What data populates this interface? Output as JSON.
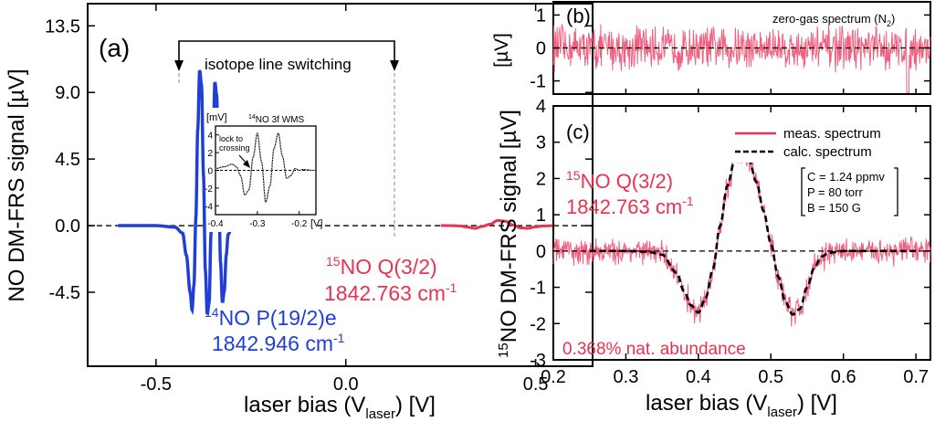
{
  "colors": {
    "blue": "#1f3fd6",
    "red": "#e8324f",
    "red_noise": "#f06080",
    "black": "#000000",
    "gray": "#9a9a9a"
  },
  "chart_data": [
    {
      "panel": "(a)",
      "type": "line",
      "xlabel_main": "laser bias (V",
      "xlabel_sub": "laser",
      "xlabel_tail": ") [V]",
      "ylabel": "NO DM-FRS signal [µV]",
      "xlim": [
        -0.68,
        0.65
      ],
      "ylim": [
        -9.5,
        15.0
      ],
      "xticks": [
        -0.5,
        0.0,
        0.5
      ],
      "xtick_labels": [
        "-0.5",
        "0.0",
        "0.5"
      ],
      "yticks": [
        -4.5,
        0.0,
        4.5,
        9.0,
        13.5
      ],
      "ytick_labels": [
        "-4.5",
        "0.0",
        "4.5",
        "9.0",
        "13.5"
      ],
      "annotation_switch": "isotope line switching",
      "label_14_sup": "14",
      "label_14_line": "NO P(19/2)e",
      "label_14_wave": "1842.946 cm",
      "label_14_exp": "-1",
      "label_15_sup": "15",
      "label_15_line": "NO Q(3/2)",
      "label_15_wave": "1842.763 cm",
      "label_15_exp": "-1",
      "series": [
        {
          "name": "14NO P(19/2)e",
          "x": [
            -0.6,
            -0.5,
            -0.45,
            -0.43,
            -0.42,
            -0.41,
            -0.405,
            -0.4,
            -0.395,
            -0.39,
            -0.385,
            -0.38,
            -0.375,
            -0.37,
            -0.365,
            -0.36,
            -0.355,
            -0.35,
            -0.345,
            -0.34,
            -0.335,
            -0.33,
            -0.325,
            -0.32,
            -0.315,
            -0.31,
            -0.3,
            -0.29,
            -0.28,
            -0.26,
            -0.24,
            -0.2
          ],
          "values": [
            0,
            0,
            -0.1,
            -0.5,
            -2.0,
            -4.5,
            -5.7,
            -4.0,
            0.5,
            6.5,
            10.5,
            9.5,
            3.5,
            -3.0,
            -6.0,
            -5.2,
            -0.5,
            5.0,
            9.7,
            8.8,
            3.0,
            -2.5,
            -5.2,
            -4.4,
            -2.0,
            -0.6,
            -0.1,
            0.25,
            0.1,
            0.05,
            0.0,
            0.0
          ]
        },
        {
          "name": "15NO Q(3/2)",
          "x": [
            0.25,
            0.28,
            0.3,
            0.32,
            0.34,
            0.36,
            0.38,
            0.4,
            0.42,
            0.44,
            0.46,
            0.48,
            0.5,
            0.52,
            0.55
          ],
          "values": [
            0,
            0,
            -0.02,
            -0.1,
            -0.18,
            -0.05,
            0.1,
            0.35,
            0.3,
            0.05,
            -0.15,
            -0.18,
            -0.08,
            -0.02,
            0
          ]
        }
      ],
      "inset": {
        "title_sup": "14",
        "title": "NO 3f WMS",
        "ylabel": "[mV]",
        "xlabel": "[V]",
        "xlim": [
          -0.4,
          -0.16
        ],
        "ylim": [
          -5,
          5
        ],
        "xticks": [
          -0.4,
          -0.3,
          -0.2
        ],
        "xtick_labels": [
          "-0.4",
          "-0.3",
          "-0.2"
        ],
        "yticks": [
          -4,
          -2,
          0,
          2,
          4
        ],
        "ytick_labels": [
          "-4",
          "-2",
          "0",
          "2",
          "4"
        ],
        "annotation_line1": "lock to",
        "annotation_line2": "crossing",
        "x": [
          -0.4,
          -0.38,
          -0.36,
          -0.35,
          -0.34,
          -0.33,
          -0.32,
          -0.31,
          -0.3,
          -0.29,
          -0.28,
          -0.27,
          -0.26,
          -0.25,
          -0.24,
          -0.23,
          -0.22,
          -0.21,
          -0.2,
          -0.19,
          -0.18,
          -0.17,
          -0.16
        ],
        "values": [
          0.2,
          0.4,
          0.7,
          0.4,
          -0.6,
          -2.8,
          -2.2,
          1.5,
          4.2,
          1.0,
          -3.6,
          -1.8,
          2.5,
          4.2,
          1.6,
          -0.9,
          -0.6,
          0.2,
          0.0,
          0.1,
          0.05,
          0.0,
          0.0
        ]
      }
    },
    {
      "panel": "(b)",
      "type": "line",
      "ylabel": "[µV]",
      "xlim": [
        0.2,
        0.72
      ],
      "ylim": [
        -1.4,
        1.4
      ],
      "yticks": [
        -1,
        0,
        1
      ],
      "ytick_labels": [
        "-1",
        "0",
        "1"
      ],
      "annotation": "zero-gas spectrum (N",
      "annotation_sub": "2",
      "annotation_end": ")",
      "series": [
        {
          "name": "zero-gas spectrum",
          "x": [
            0.2,
            0.72
          ],
          "values": [
            0,
            0
          ],
          "noise_amplitude_uV": 0.8
        }
      ]
    },
    {
      "panel": "(c)",
      "type": "line",
      "xlabel_main": "laser bias (V",
      "xlabel_sub": "laser",
      "xlabel_tail": ") [V]",
      "ylabel_sup": "15",
      "ylabel": "NO DM-FRS signal [µV]",
      "xlim": [
        0.2,
        0.72
      ],
      "ylim": [
        -3.0,
        4.0
      ],
      "xticks": [
        0.2,
        0.3,
        0.4,
        0.5,
        0.6,
        0.7
      ],
      "xtick_labels": [
        "0.2",
        "0.3",
        "0.4",
        "0.5",
        "0.6",
        "0.7"
      ],
      "yticks": [
        -3,
        -2,
        -1,
        0,
        1,
        2,
        3,
        4
      ],
      "ytick_labels": [
        "-3",
        "-2",
        "-1",
        "0",
        "1",
        "2",
        "3",
        "4"
      ],
      "legend": [
        "meas. spectrum",
        "calc. spectrum"
      ],
      "params": [
        "C = 1.24 ppmv",
        "P = 80 torr",
        "B = 150 G"
      ],
      "label_sup": "15",
      "label_line": "NO Q(3/2)",
      "label_wave": "1842.763 cm",
      "label_exp": "-1",
      "abundance": "0.368% nat. abundance",
      "series": [
        {
          "name": "calc. spectrum",
          "x": [
            0.25,
            0.3,
            0.33,
            0.35,
            0.37,
            0.38,
            0.39,
            0.4,
            0.41,
            0.42,
            0.43,
            0.44,
            0.45,
            0.46,
            0.47,
            0.48,
            0.49,
            0.5,
            0.51,
            0.52,
            0.53,
            0.54,
            0.55,
            0.56,
            0.57,
            0.58,
            0.6,
            0.65,
            0.7
          ],
          "values": [
            0,
            0,
            -0.02,
            -0.1,
            -0.6,
            -1.1,
            -1.5,
            -1.7,
            -1.3,
            -0.5,
            0.7,
            1.8,
            2.5,
            2.7,
            2.5,
            1.9,
            1.1,
            0.2,
            -0.7,
            -1.4,
            -1.75,
            -1.6,
            -1.0,
            -0.45,
            -0.15,
            -0.05,
            0,
            0,
            0
          ]
        },
        {
          "name": "meas. spectrum",
          "x": [
            0.2,
            0.72
          ],
          "values": [
            0,
            0
          ],
          "note": "calc. spectrum plus noise",
          "noise_amplitude_uV": 0.45
        }
      ]
    }
  ]
}
